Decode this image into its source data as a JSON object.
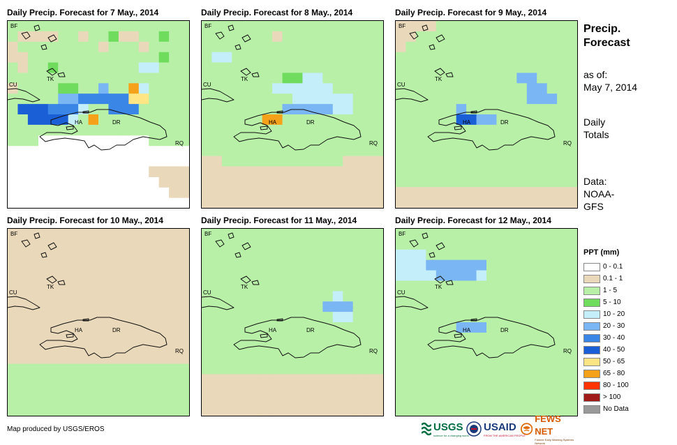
{
  "panels": [
    {
      "title": "Daily Precip. Forecast for 7 May., 2014"
    },
    {
      "title": "Daily Precip. Forecast for 8 May., 2014"
    },
    {
      "title": "Daily Precip. Forecast for 9 May., 2014"
    },
    {
      "title": "Daily Precip. Forecast for 10 May., 2014"
    },
    {
      "title": "Daily Precip. Forecast for 11 May., 2014"
    },
    {
      "title": "Daily Precip. Forecast for 12 May., 2014"
    }
  ],
  "map_labels": {
    "bf": "BF",
    "tk": "TK",
    "cu": "CU",
    "ha": "HA",
    "dr": "DR",
    "rq": "RQ"
  },
  "sidebar": {
    "title_line1": "Precip.",
    "title_line2": "Forecast",
    "asof_line1": "as of:",
    "asof_line2": "May 7, 2014",
    "totals_line1": "Daily",
    "totals_line2": "Totals",
    "data_line1": "Data:",
    "data_line2": "NOAA-",
    "data_line3": "GFS"
  },
  "legend": {
    "title": "PPT (mm)",
    "items": [
      {
        "label": "0 - 0.1",
        "color": "#ffffff"
      },
      {
        "label": "0.1 - 1",
        "color": "#e9d8b9"
      },
      {
        "label": "1 - 5",
        "color": "#b8f0a8"
      },
      {
        "label": "5 - 10",
        "color": "#6fdc5e"
      },
      {
        "label": "10 - 20",
        "color": "#c4eef9"
      },
      {
        "label": "20 - 30",
        "color": "#7ab6f4"
      },
      {
        "label": "30 - 40",
        "color": "#3a86e6"
      },
      {
        "label": "40 - 50",
        "color": "#1b5fd6"
      },
      {
        "label": "50 - 65",
        "color": "#ffe584"
      },
      {
        "label": "65 - 80",
        "color": "#f5a11a"
      },
      {
        "label": "80 - 100",
        "color": "#ff3300"
      },
      {
        "label": "> 100",
        "color": "#a11a1a"
      },
      {
        "label": "No Data",
        "color": "#999999"
      }
    ]
  },
  "footer": {
    "credit": "Map produced by USGS/EROS"
  },
  "logos": {
    "usgs": "USGS",
    "usgs_tag": "science for a changing world",
    "usaid": "USAID",
    "usaid_tag": "FROM THE AMERICAN PEOPLE",
    "fews": "FEWS NET",
    "fews_tag": "Famine Early Warning Systems Network"
  },
  "grids": [
    [
      "222222222222222222",
      "211112212231122322",
      "122222222122212222",
      "112222222222222322",
      "212232222222244222",
      "222222222222222222",
      "122223322522942222",
      "222225566666882222",
      "277766642266622222",
      "227777429222222222",
      "222222222222222222",
      "222000000000002222",
      "000000000000000000",
      "000000000000000000",
      "000000000000001111",
      "000000000000000111",
      "000000000000000011",
      "000000000000000000"
    ],
    [
      "222222222222222222",
      "222222212222222222",
      "222222222222222222",
      "244222222222222222",
      "222222222222222222",
      "222222223344222222",
      "222222244444422222",
      "222222222444444222",
      "222222225555544222",
      "222222992222222222",
      "222222222222222222",
      "222222222222222222",
      "222222222222222222",
      "112222222222221111",
      "111111111111111111",
      "111111111111111111",
      "111111111111111111",
      "111111111111111111"
    ],
    [
      "111122222222222222",
      "112222222222222222",
      "122222222222222222",
      "222222222222222222",
      "222222222222222222",
      "222222222222552222",
      "222222222222255222",
      "222222222222255522",
      "222222522222222222",
      "222222775522222222",
      "222222222222222222",
      "222222222222222222",
      "222222222222222222",
      "222222222222222222",
      "222222222222222222",
      "222222222222222222",
      "111111111111111111",
      "111111111111111111"
    ],
    [
      "111111111111111111",
      "111111111111111111",
      "111111111111111111",
      "111111111111111111",
      "111111111111111111",
      "111111111111111111",
      "111111111111111111",
      "111111111111111111",
      "111111111111111111",
      "111111111111111111",
      "111111111111111111",
      "111111111111111111",
      "111111111111111111",
      "222222222222222222",
      "222222222222222222",
      "222222222222222222",
      "222222222222222222",
      "222222222222222222"
    ],
    [
      "222222222222222222",
      "222222222222222222",
      "222222222222222222",
      "222222222222222222",
      "222222222222222222",
      "222222222222222222",
      "222222222222242222",
      "222222222222555222",
      "222222222222244222",
      "222222222222222222",
      "222222222222222222",
      "222222222222222222",
      "222222222222222222",
      "222222222222222222",
      "111111111111111111",
      "111111111111111111",
      "111111111111111111",
      "111111111111111111"
    ],
    [
      "222222222222222222",
      "222222222222222222",
      "444222222222222222",
      "444555555222222222",
      "444455554222222222",
      "222222222222222222",
      "222222222222222222",
      "222222222222222222",
      "222222222222222222",
      "222222555222222222",
      "222222222222222222",
      "222222222222222222",
      "222222222222222222",
      "222222222222222222",
      "222222222222222222",
      "222222222222222222",
      "222222222222222222",
      "222222222222222222"
    ]
  ]
}
